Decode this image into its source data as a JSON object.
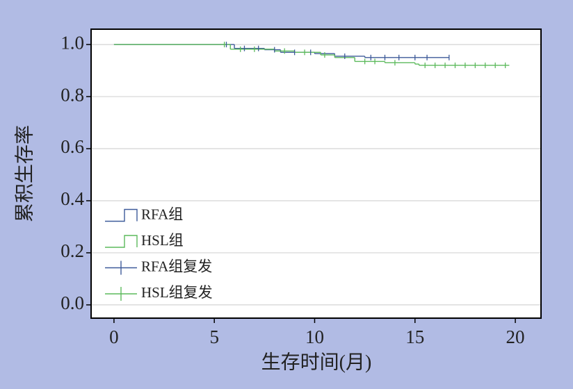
{
  "chart_data": {
    "type": "survival",
    "xlabel": "生存时间(月)",
    "ylabel": "累积生存率",
    "xlim": [
      -1.14,
      21.28
    ],
    "ylim": [
      -0.051,
      1.059
    ],
    "xticks": [
      0,
      5,
      10,
      15,
      20
    ],
    "yticks": [
      {
        "value": 0,
        "label": "0.0"
      },
      0.2,
      0.4,
      0.6,
      0.8,
      {
        "value": 1,
        "label": "1.0"
      }
    ],
    "grid": true,
    "legend": "lower left",
    "series": [
      {
        "name": "RFA组",
        "kind": "step",
        "color": "#3d5a99",
        "x": [
          0,
          6.0,
          7.5,
          8.3,
          10.0,
          11.0,
          12.5,
          16.7
        ],
        "values": [
          1.0,
          0.985,
          0.98,
          0.97,
          0.965,
          0.955,
          0.95,
          0.95
        ]
      },
      {
        "name": "HSL组",
        "kind": "step",
        "color": "#5cba5c",
        "x": [
          0,
          5.8,
          8.0,
          9.0,
          10.3,
          11.0,
          12.0,
          13.5,
          15.0,
          15.2,
          19.7
        ],
        "values": [
          1.0,
          0.982,
          0.975,
          0.97,
          0.96,
          0.95,
          0.935,
          0.93,
          0.925,
          0.92,
          0.92
        ]
      },
      {
        "name": "RFA组复发",
        "kind": "censor",
        "color": "#3d5a99",
        "x": [
          5.6,
          6.5,
          7.2,
          8.0,
          9.0,
          9.8,
          11.5,
          12.8,
          13.5,
          14.2,
          15.0,
          15.6,
          16.7
        ],
        "values": [
          1.0,
          0.985,
          0.985,
          0.98,
          0.97,
          0.97,
          0.955,
          0.95,
          0.95,
          0.95,
          0.95,
          0.95,
          0.95
        ]
      },
      {
        "name": "HSL组复发",
        "kind": "censor",
        "color": "#5cba5c",
        "x": [
          5.5,
          6.3,
          7.0,
          8.5,
          9.5,
          10.5,
          12.5,
          13.0,
          14.0,
          15.5,
          16.0,
          16.5,
          17.0,
          17.5,
          18.0,
          18.5,
          19.0,
          19.5
        ],
        "values": [
          1.0,
          0.982,
          0.982,
          0.975,
          0.97,
          0.96,
          0.935,
          0.935,
          0.93,
          0.92,
          0.92,
          0.92,
          0.92,
          0.92,
          0.92,
          0.92,
          0.92,
          0.92
        ]
      }
    ]
  }
}
